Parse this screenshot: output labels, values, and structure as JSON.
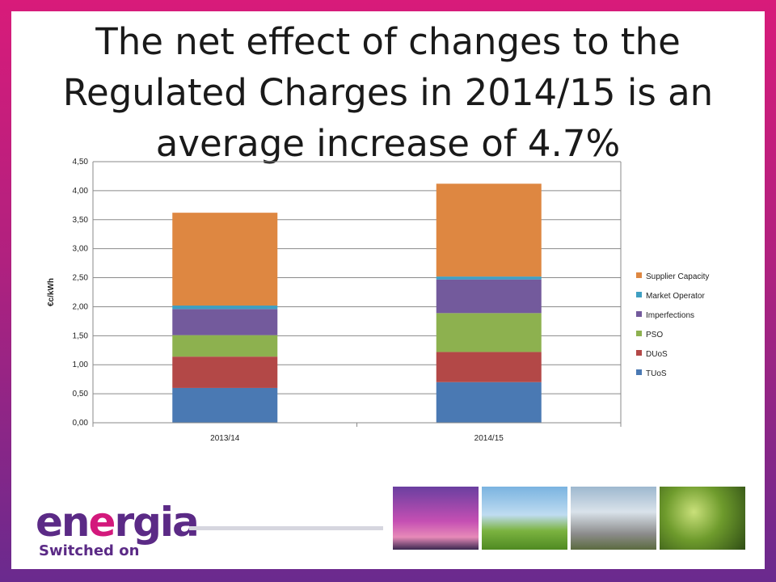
{
  "title": {
    "line1": "The net effect of changes to the",
    "line2": "Regulated Charges in 2014/15 is an",
    "line3": "average increase of 4.7%"
  },
  "brand": {
    "word": "energia",
    "tagline": "Switched on"
  },
  "chart_data": {
    "type": "bar",
    "stacked": true,
    "categories": [
      "2013/14",
      "2014/15"
    ],
    "ylabel": "€c/kWh",
    "xlabel": "",
    "ylim": [
      0,
      4.5
    ],
    "yticks": [
      "0,00",
      "0,50",
      "1,00",
      "1,50",
      "2,00",
      "2,50",
      "3,00",
      "3,50",
      "4,00",
      "4,50"
    ],
    "grid": true,
    "legend_position": "right",
    "series": [
      {
        "name": "TUoS",
        "color": "#4a79b3",
        "values": [
          0.6,
          0.7
        ]
      },
      {
        "name": "DUoS",
        "color": "#b34847",
        "values": [
          0.54,
          0.52
        ]
      },
      {
        "name": "PSO",
        "color": "#8db14f",
        "values": [
          0.37,
          0.67
        ]
      },
      {
        "name": "Imperfections",
        "color": "#735a9c",
        "values": [
          0.45,
          0.58
        ]
      },
      {
        "name": "Market Operator",
        "color": "#3f9fc2",
        "values": [
          0.06,
          0.05
        ]
      },
      {
        "name": "Supplier Capacity",
        "color": "#de8741",
        "values": [
          1.6,
          1.6
        ]
      }
    ]
  }
}
